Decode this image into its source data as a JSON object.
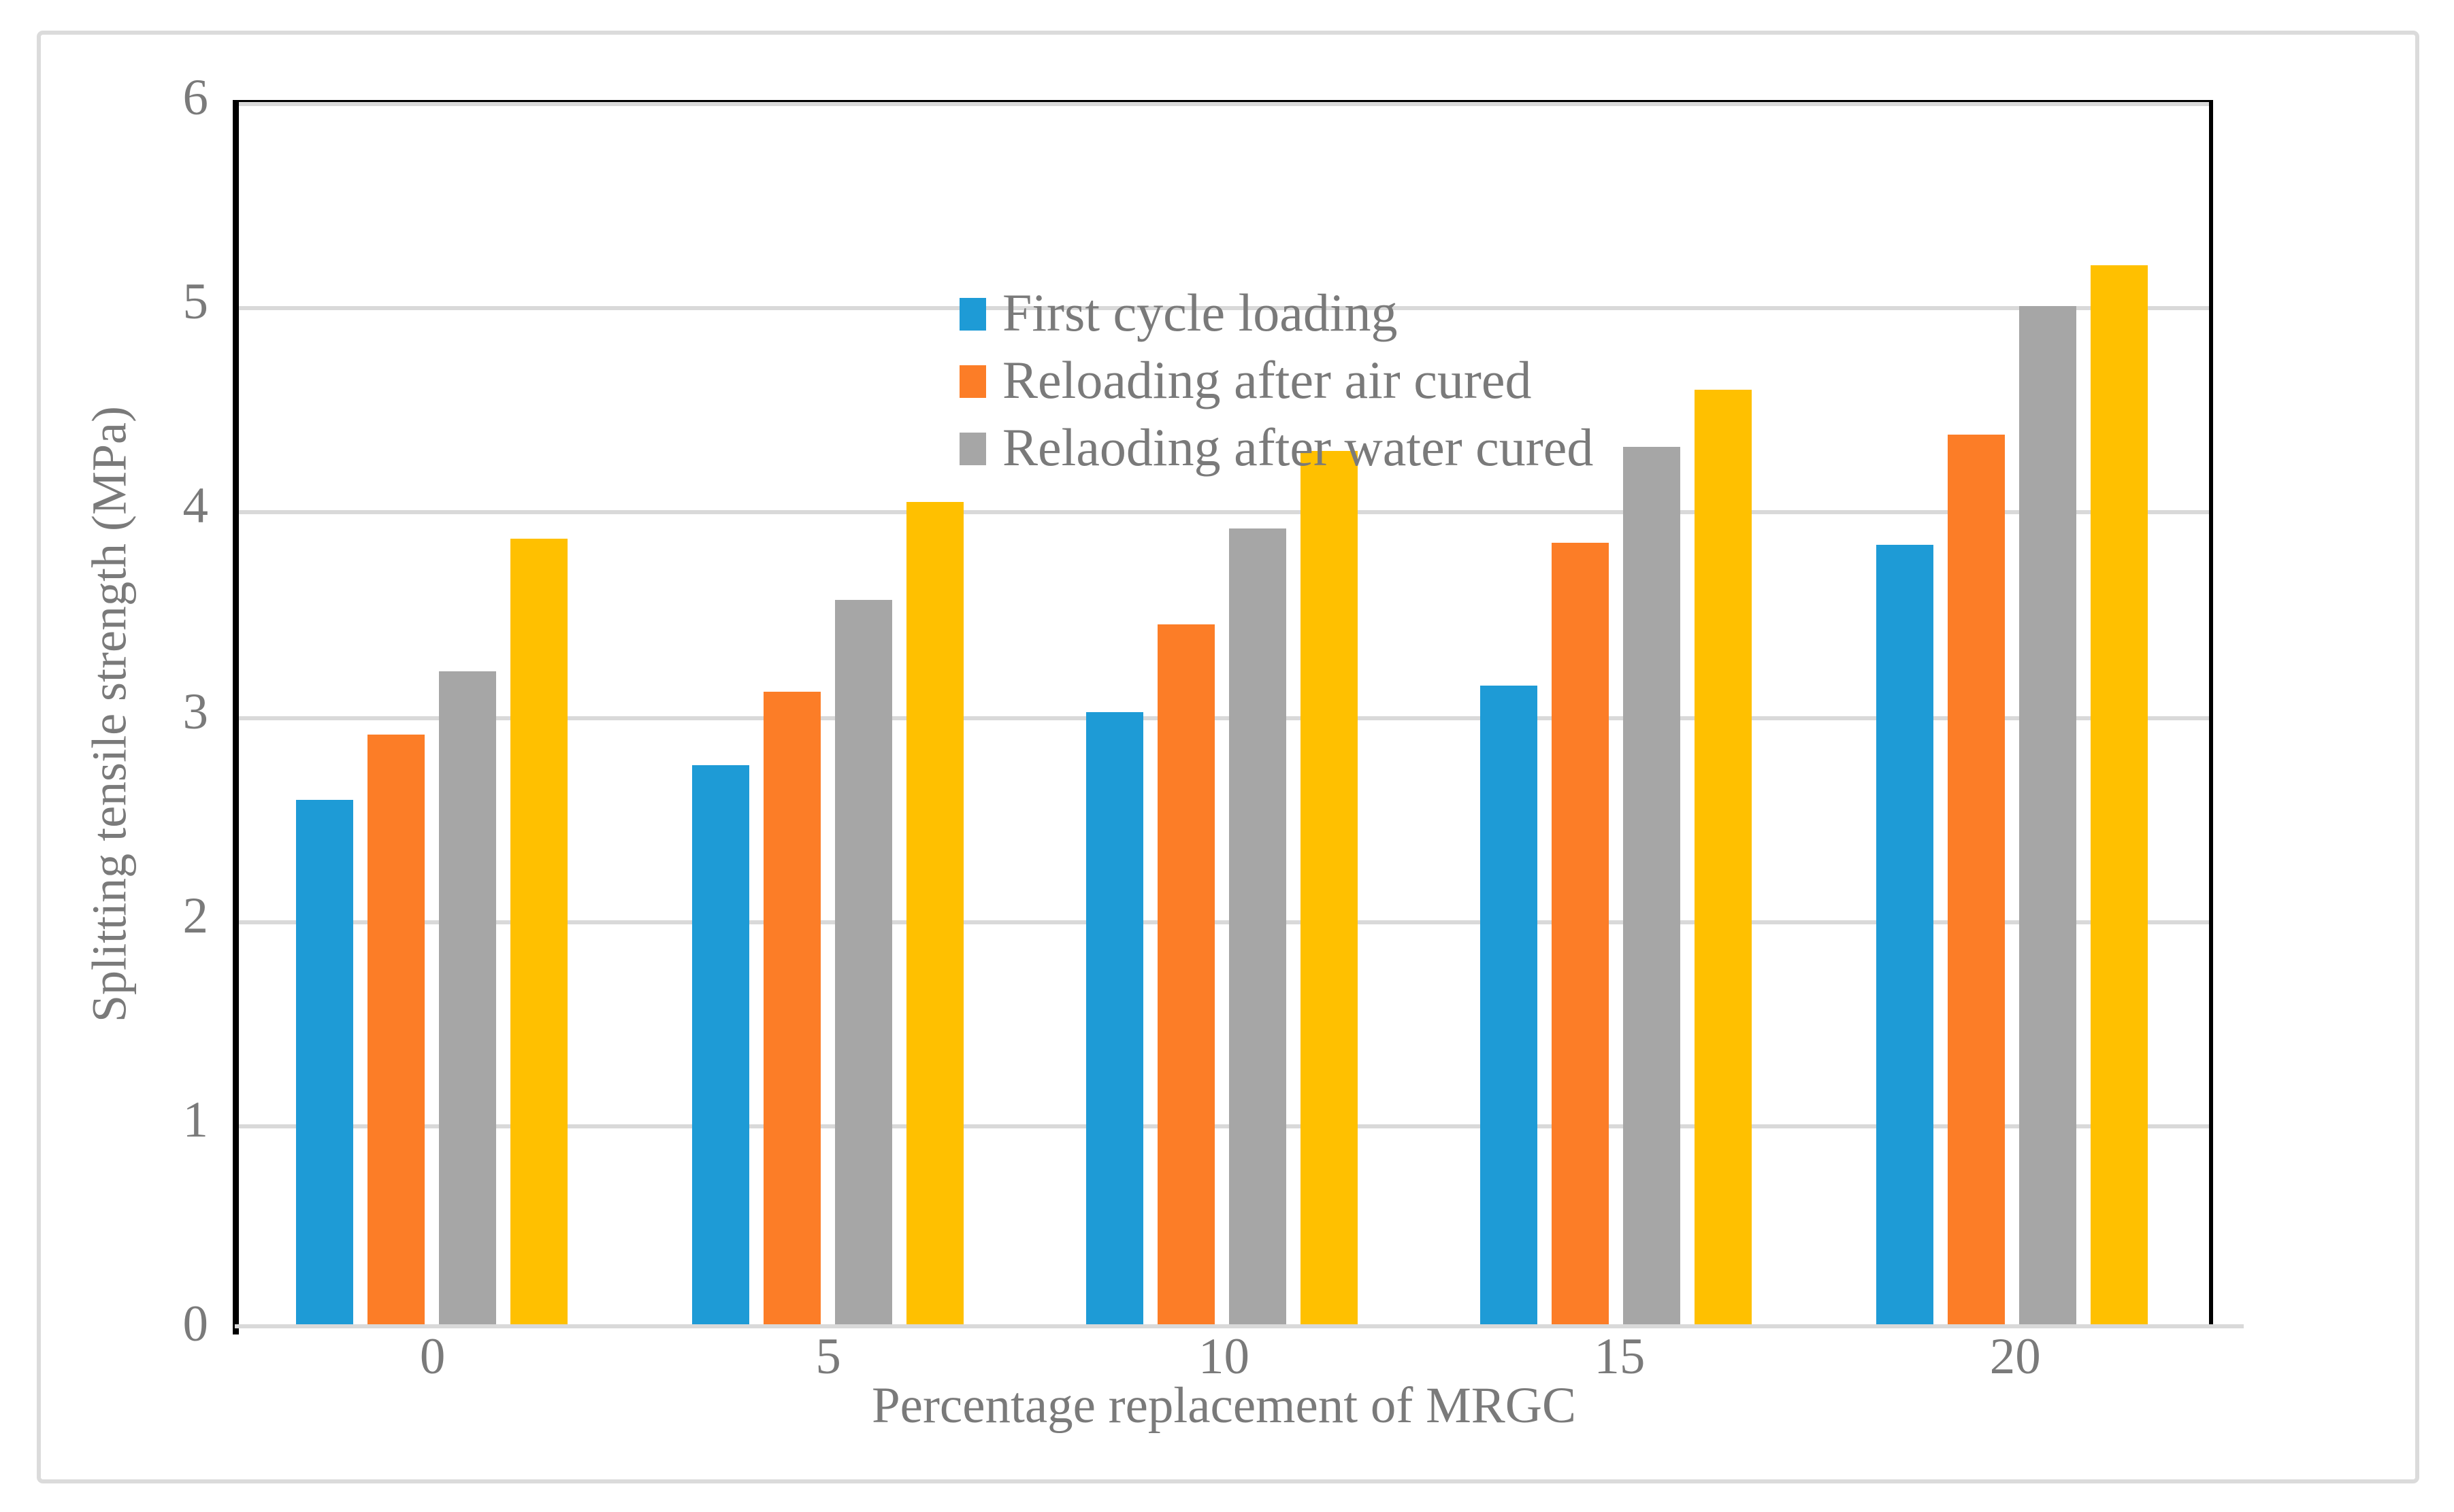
{
  "chart_data": {
    "type": "bar",
    "title": "",
    "categories": [
      "0",
      "5",
      "10",
      "15",
      "20"
    ],
    "series": [
      {
        "name": "First cycle loading",
        "color": "#1e9bd6",
        "in_legend": true,
        "values": [
          2.58,
          2.75,
          3.02,
          3.15,
          3.84
        ]
      },
      {
        "name": "Reloading after air cured",
        "color": "#fc7d27",
        "in_legend": true,
        "values": [
          2.91,
          3.12,
          3.45,
          3.85,
          4.38
        ]
      },
      {
        "name": "Relaoding after water cured",
        "color": "#a6a6a6",
        "in_legend": true,
        "values": [
          3.22,
          3.57,
          3.92,
          4.32,
          5.01
        ]
      },
      {
        "name": "",
        "color": "#ffc000",
        "in_legend": false,
        "values": [
          3.87,
          4.05,
          4.3,
          4.6,
          5.21
        ]
      }
    ],
    "xlabel": "Percentage replacement of MRGC",
    "ylabel": "Splitting tensile strength (MPa)",
    "ylim": [
      0,
      6
    ],
    "yticks": [
      0,
      1,
      2,
      3,
      4,
      5,
      6
    ],
    "grid": "horizontal",
    "legend_position": "inside-top-left",
    "colors": {
      "gridline": "#d9d9d9",
      "axis_frame": "#000000",
      "text": "#7a7a7a",
      "outer_border": "#dbdbdb",
      "background": "#ffffff"
    }
  }
}
